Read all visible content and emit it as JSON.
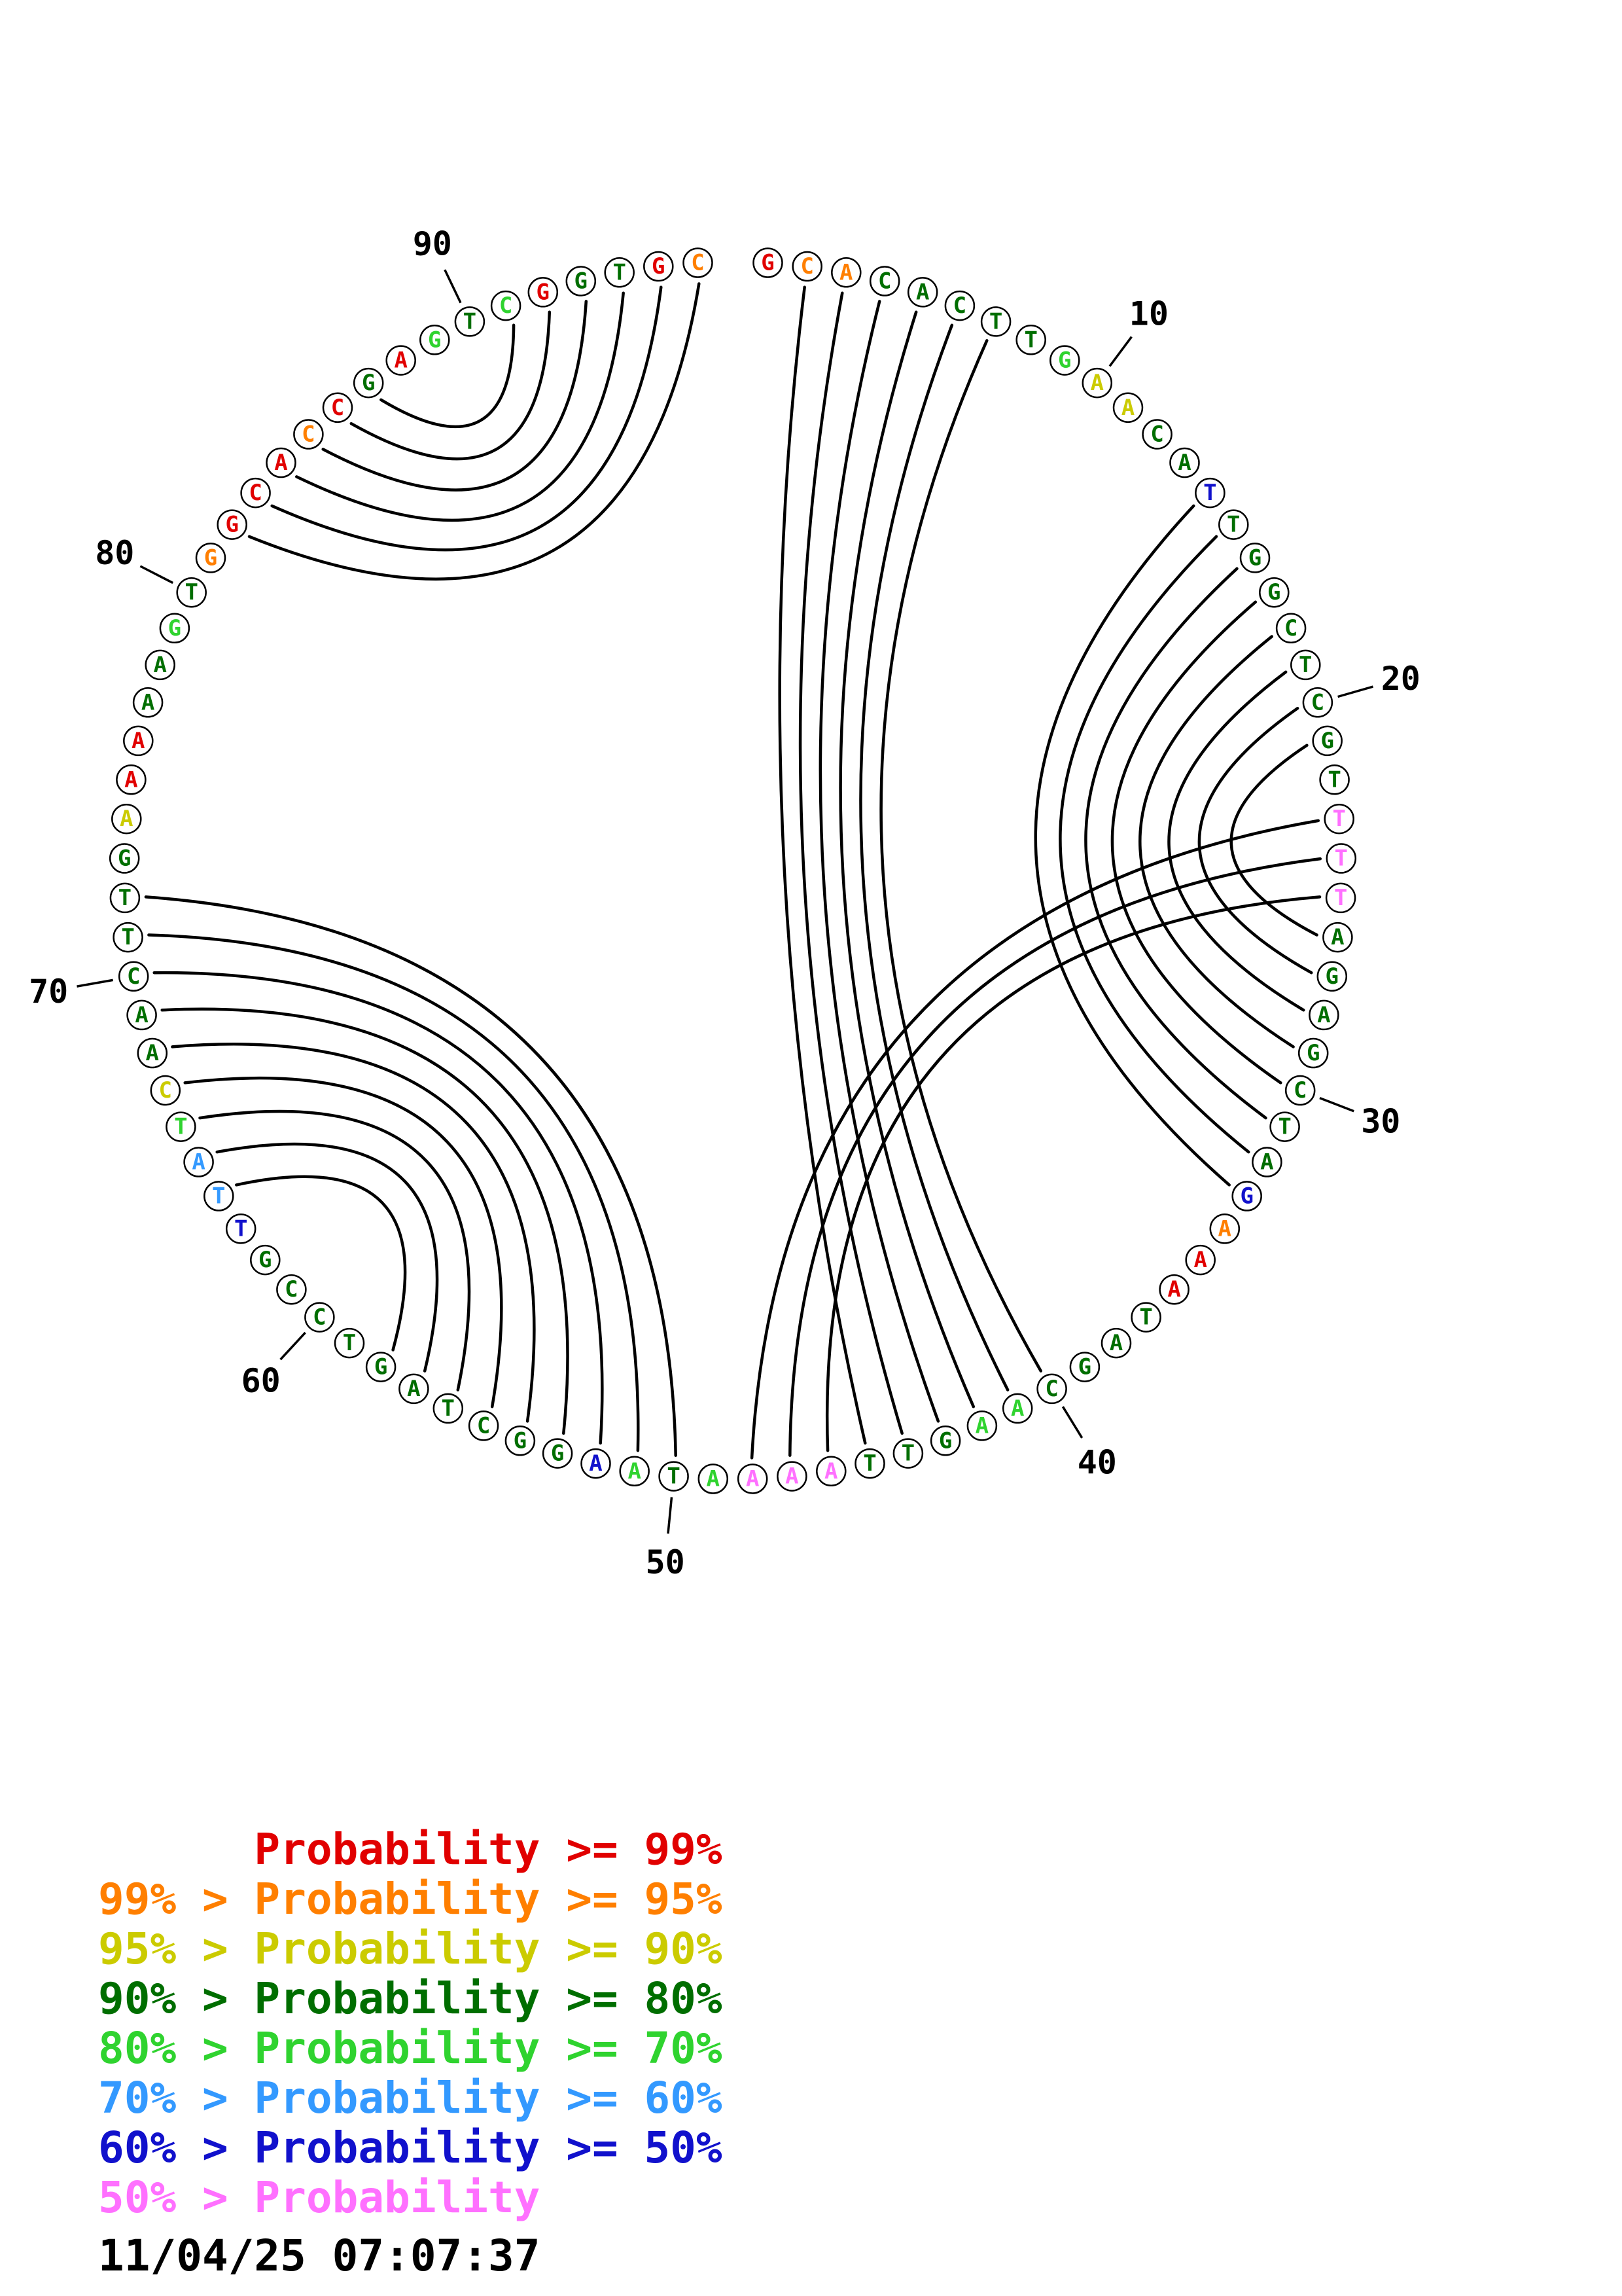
{
  "plot": {
    "sequence": "GCACACTTGAACATTGGCTCGTTTTAGAGCTAGAAATAGCAAGTTAAAATAAGGCTAGTCCGTTATCAACTTGAAAAAGTGGCACCGAGTCGGTGC",
    "classes": [
      "p99",
      "p95",
      "p95",
      "p80",
      "p80",
      "p80",
      "p80",
      "p80",
      "p70",
      "p90",
      "p90",
      "p80",
      "p80",
      "p50",
      "p80",
      "p80",
      "p80",
      "p80",
      "p80",
      "p80",
      "p80",
      "p80",
      "plt50",
      "plt50",
      "plt50",
      "p80",
      "p80",
      "p80",
      "p80",
      "p80",
      "p80",
      "p80",
      "p50",
      "p95",
      "p99",
      "p99",
      "p80",
      "p80",
      "p80",
      "p80",
      "p70",
      "p70",
      "p80",
      "p80",
      "p80",
      "plt50",
      "plt50",
      "plt50",
      "p70",
      "p80",
      "p70",
      "p50",
      "p80",
      "p80",
      "p80",
      "p80",
      "p80",
      "p80",
      "p80",
      "p80",
      "p80",
      "p80",
      "p50",
      "p60",
      "p60",
      "p70",
      "p90",
      "p80",
      "p80",
      "p80",
      "p80",
      "p80",
      "p80",
      "p90",
      "p99",
      "p99",
      "p80",
      "p80",
      "p70",
      "p80",
      "p95",
      "p99",
      "p99",
      "p99",
      "p95",
      "p99",
      "p80",
      "p99",
      "p70",
      "p80",
      "p70",
      "p99",
      "p80",
      "p80",
      "p99",
      "p95"
    ],
    "pairs": [
      [
        2,
        45
      ],
      [
        3,
        44
      ],
      [
        4,
        43
      ],
      [
        5,
        42
      ],
      [
        6,
        41
      ],
      [
        7,
        40
      ],
      [
        14,
        33
      ],
      [
        15,
        32
      ],
      [
        16,
        31
      ],
      [
        17,
        30
      ],
      [
        18,
        29
      ],
      [
        19,
        28
      ],
      [
        20,
        27
      ],
      [
        21,
        26
      ],
      [
        23,
        48
      ],
      [
        24,
        47
      ],
      [
        25,
        46
      ],
      [
        50,
        72
      ],
      [
        51,
        71
      ],
      [
        52,
        70
      ],
      [
        53,
        69
      ],
      [
        54,
        68
      ],
      [
        55,
        67
      ],
      [
        56,
        66
      ],
      [
        57,
        65
      ],
      [
        58,
        64
      ],
      [
        82,
        96
      ],
      [
        83,
        95
      ],
      [
        84,
        94
      ],
      [
        85,
        93
      ],
      [
        86,
        92
      ],
      [
        87,
        91
      ]
    ],
    "tick_positions": [
      10,
      20,
      30,
      40,
      50,
      60,
      70,
      80,
      90
    ]
  },
  "legend": {
    "lines": [
      {
        "text": "      Probability >= 99%",
        "class": "p99"
      },
      {
        "text": "99% > Probability >= 95%",
        "class": "p95"
      },
      {
        "text": "95% > Probability >= 90%",
        "class": "p90"
      },
      {
        "text": "90% > Probability >= 80%",
        "class": "p80"
      },
      {
        "text": "80% > Probability >= 70%",
        "class": "p70"
      },
      {
        "text": "70% > Probability >= 60%",
        "class": "p60"
      },
      {
        "text": "60% > Probability >= 50%",
        "class": "p50"
      },
      {
        "text": "50% > Probability",
        "class": "plt50"
      }
    ]
  },
  "colors": {
    "p99": "#e10000",
    "p95": "#ff7f00",
    "p90": "#cbcb00",
    "p80": "#006e00",
    "p70": "#2fd32f",
    "p60": "#3399ff",
    "p50": "#1111cc",
    "plt50": "#ff70ff",
    "stroke": "#000000"
  },
  "timestamp": "11/04/25 07:07:37"
}
